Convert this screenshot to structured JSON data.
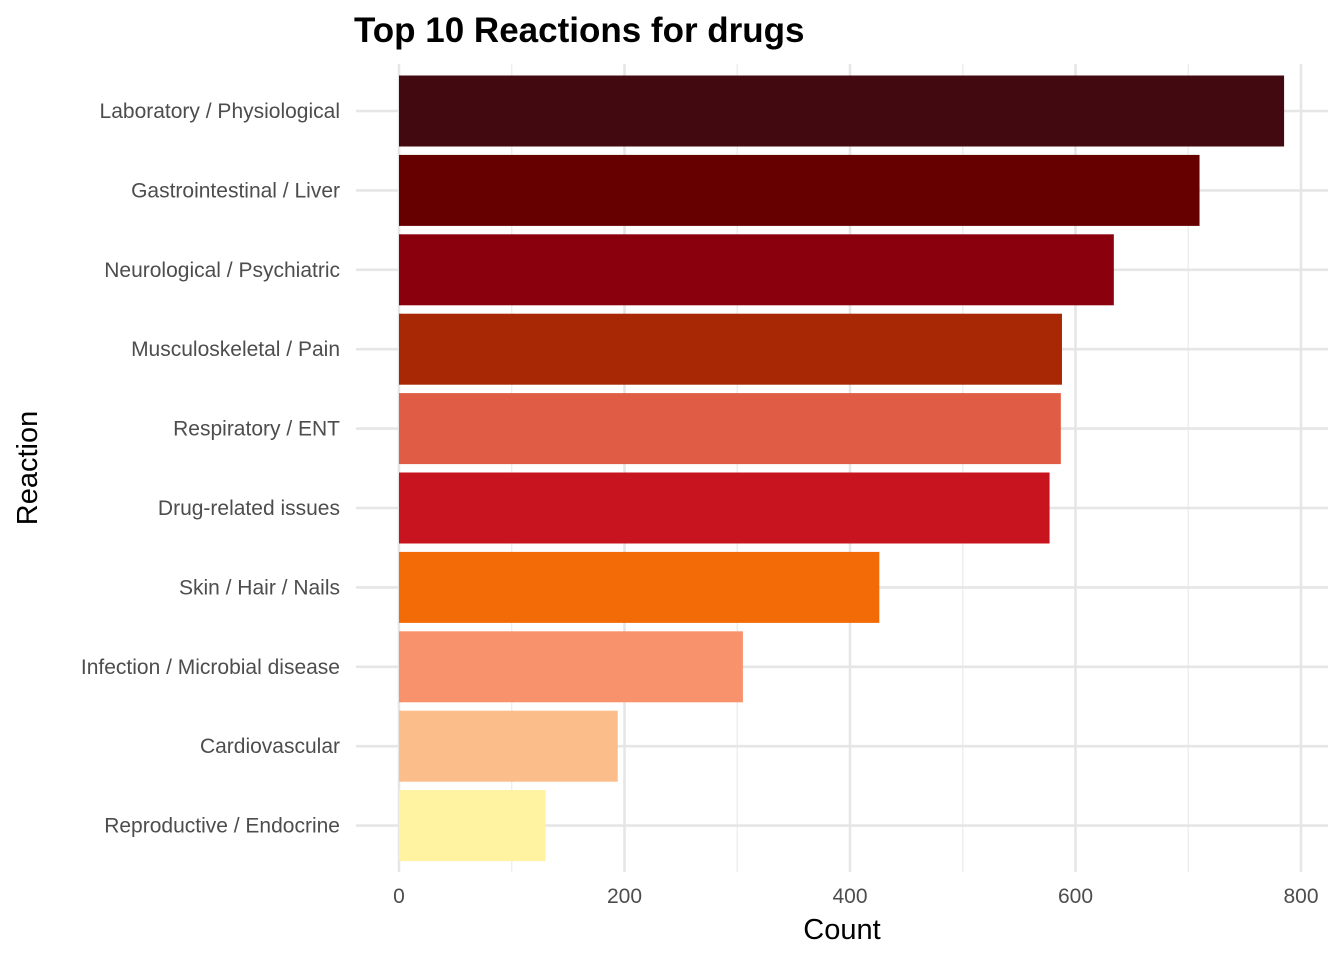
{
  "chart_data": {
    "type": "bar",
    "orientation": "horizontal",
    "title": "Top 10 Reactions for drugs",
    "xlabel": "Count",
    "ylabel": "Reaction",
    "xlim": [
      0,
      822
    ],
    "x_ticks": [
      0,
      200,
      400,
      600,
      800
    ],
    "grid": true,
    "legend": "none",
    "categories": [
      "Laboratory / Physiological",
      "Gastrointestinal / Liver",
      "Neurological / Psychiatric",
      "Musculoskeletal / Pain",
      "Respiratory / ENT",
      "Drug-related issues",
      "Skin / Hair / Nails",
      "Infection / Microbial disease",
      "Cardiovascular",
      "Reproductive / Endocrine"
    ],
    "values": [
      785,
      710,
      634,
      588,
      587,
      577,
      426,
      305,
      194,
      130
    ],
    "colors": [
      "#430910",
      "#660000",
      "#8b000d",
      "#a82805",
      "#e05c44",
      "#c8141e",
      "#f26b07",
      "#f8926c",
      "#fbbe8a",
      "#fff2a0"
    ]
  }
}
